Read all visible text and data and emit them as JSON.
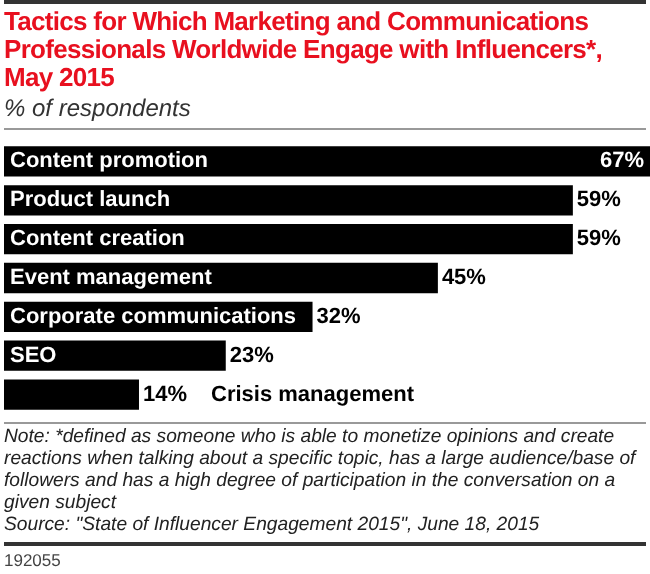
{
  "chart_data": {
    "type": "bar",
    "orientation": "horizontal",
    "title": "Tactics for Which Marketing and Communications Professionals Worldwide Engage with Influencers*, May 2015",
    "subtitle": "% of respondents",
    "categories": [
      "Content promotion",
      "Product launch",
      "Content creation",
      "Event management",
      "Corporate communications",
      "SEO",
      "Crisis management"
    ],
    "values": [
      67,
      59,
      59,
      45,
      32,
      23,
      14
    ],
    "value_labels": [
      "67%",
      "59%",
      "59%",
      "45%",
      "32%",
      "23%",
      "14%"
    ],
    "color": "#000000",
    "legend": false,
    "annotations": [
      "Note: *defined as someone who is able to monetize opinions and create reactions when talking about a specific topic, has a large audience/base of followers and has a high degree of participation in the conversation on a given subject",
      "Source: \"State of Influencer Engagement 2015\", June 18, 2015",
      "192055"
    ]
  }
}
